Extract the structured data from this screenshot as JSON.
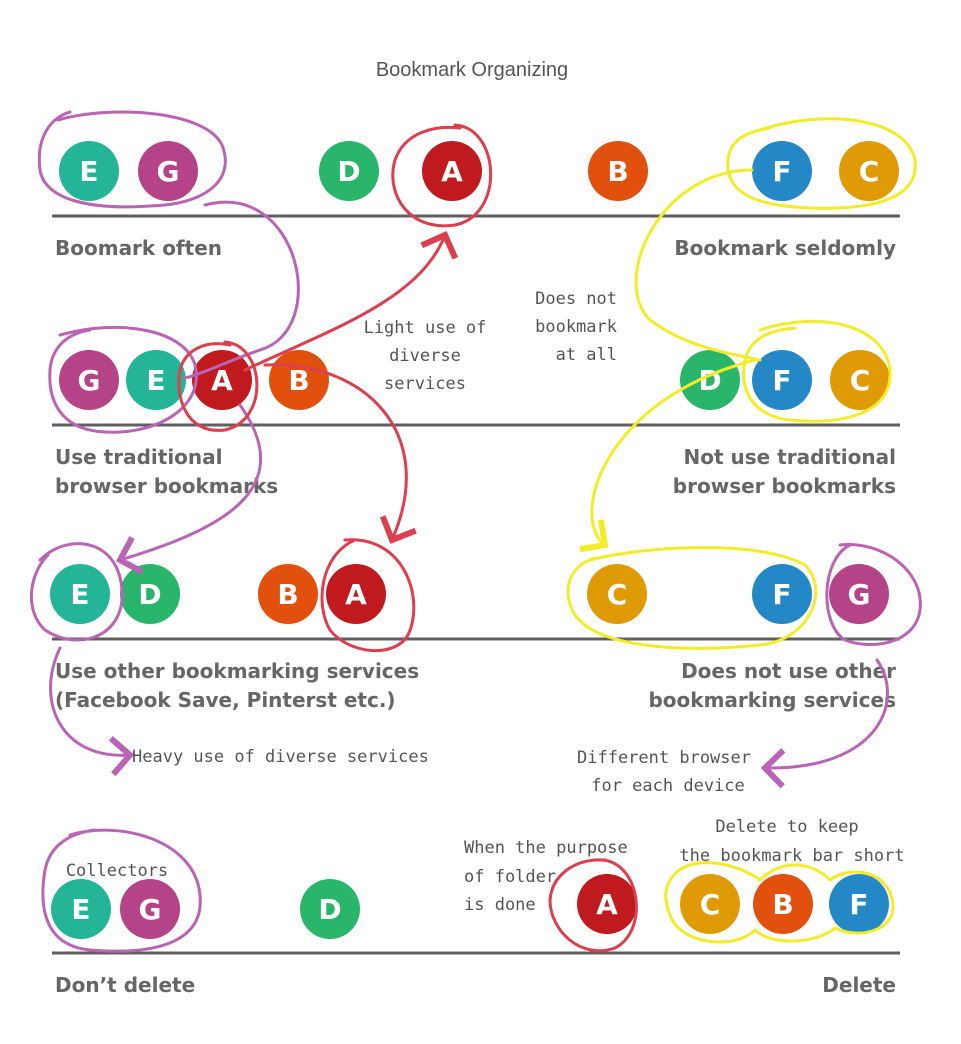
{
  "title": "Bookmark Organizing",
  "colors": {
    "A": "#c0191e",
    "B": "#e2500d",
    "C": "#e09a06",
    "D": "#29b66b",
    "E": "#24b497",
    "F": "#2488c7",
    "G": "#b44387",
    "purple_annotation": "#b964b5",
    "red_annotation": "#dd3f4e",
    "yellow_annotation": "#f3ec28",
    "axis": "#5f5f5f"
  },
  "rows": [
    {
      "left_label": [
        "Boomark often"
      ],
      "right_label": [
        "Bookmark seldomly"
      ],
      "dots": [
        "E",
        "G",
        "D",
        "A",
        "B",
        "F",
        "C"
      ]
    },
    {
      "left_label": [
        "Use traditional",
        "browser bookmarks"
      ],
      "right_label": [
        "Not use traditional",
        "browser bookmarks"
      ],
      "dots": [
        "G",
        "E",
        "A",
        "B",
        "D",
        "F",
        "C"
      ]
    },
    {
      "left_label": [
        "Use other bookmarking services",
        "(Facebook Save, Pinterst etc.)"
      ],
      "right_label": [
        "Does not use other",
        "bookmarking services"
      ],
      "dots": [
        "E",
        "D",
        "B",
        "A",
        "C",
        "F",
        "G"
      ]
    },
    {
      "left_label": [
        "Don’t delete"
      ],
      "right_label": [
        "Delete"
      ],
      "dots": [
        "E",
        "G",
        "D",
        "A",
        "C",
        "B",
        "F"
      ]
    }
  ],
  "annotations": {
    "light_use": [
      "Light use of",
      "diverse",
      "services"
    ],
    "no_bookmark": [
      "Does not",
      "bookmark",
      "at all"
    ],
    "heavy_use": "Heavy use of diverse services",
    "different_browser": [
      "Different browser",
      "for each device"
    ],
    "collectors": "Collectors",
    "purpose_done": [
      "When the purpose",
      "of folder",
      "is done"
    ],
    "keep_short": [
      "Delete to keep",
      "the bookmark bar short"
    ]
  }
}
